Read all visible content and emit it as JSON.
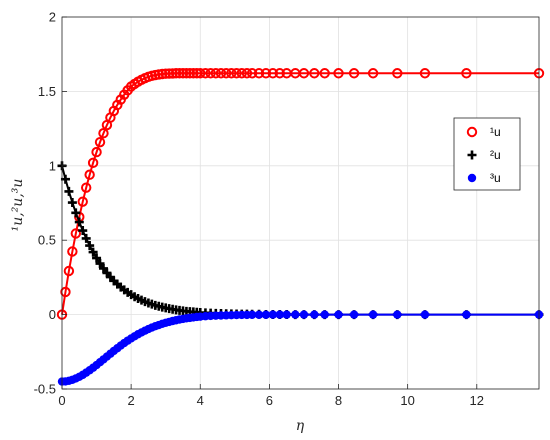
{
  "chart_data": {
    "type": "line",
    "title": "",
    "xlabel": "η",
    "ylabel": "¹u,²u,³u",
    "xlim": [
      0,
      13.8
    ],
    "ylim": [
      -0.5,
      2
    ],
    "grid": true,
    "legend_position": "right",
    "x_ticks": [
      "0",
      "2",
      "4",
      "6",
      "8",
      "10",
      "12"
    ],
    "y_ticks": [
      "-0.5",
      "0",
      "0.5",
      "1",
      "1.5",
      "2"
    ],
    "colors": {
      "s1": "#ff0000",
      "s2": "#000000",
      "s3": "#0000ff"
    },
    "x": [
      0,
      0.1,
      0.2,
      0.3,
      0.4,
      0.5,
      0.6,
      0.7,
      0.8,
      0.9,
      1.0,
      1.1,
      1.2,
      1.3,
      1.4,
      1.5,
      1.6,
      1.7,
      1.8,
      1.9,
      2.0,
      2.1,
      2.2,
      2.3,
      2.4,
      2.5,
      2.6,
      2.7,
      2.8,
      2.9,
      3.0,
      3.1,
      3.2,
      3.3,
      3.4,
      3.5,
      3.6,
      3.7,
      3.8,
      3.9,
      4.0,
      4.15,
      4.3,
      4.45,
      4.6,
      4.75,
      4.9,
      5.05,
      5.2,
      5.35,
      5.5,
      5.7,
      5.9,
      6.1,
      6.3,
      6.5,
      6.75,
      7.0,
      7.3,
      7.6,
      8.0,
      8.45,
      9.0,
      9.7,
      10.5,
      11.7,
      13.8
    ],
    "series": [
      {
        "name": "¹u",
        "marker": "open-circle",
        "values": [
          0,
          0.152,
          0.293,
          0.424,
          0.545,
          0.656,
          0.759,
          0.853,
          0.94,
          1.02,
          1.092,
          1.159,
          1.219,
          1.274,
          1.324,
          1.369,
          1.409,
          1.445,
          1.478,
          1.507,
          1.533,
          1.55,
          1.565,
          1.578,
          1.589,
          1.598,
          1.605,
          1.61,
          1.614,
          1.617,
          1.619,
          1.62,
          1.621,
          1.622,
          1.622,
          1.622,
          1.622,
          1.622,
          1.622,
          1.622,
          1.622,
          1.622,
          1.622,
          1.622,
          1.622,
          1.622,
          1.622,
          1.622,
          1.622,
          1.622,
          1.622,
          1.622,
          1.622,
          1.622,
          1.622,
          1.622,
          1.622,
          1.622,
          1.622,
          1.622,
          1.622,
          1.622,
          1.622,
          1.622,
          1.622,
          1.622,
          1.622
        ]
      },
      {
        "name": "²u",
        "marker": "plus",
        "values": [
          1.0,
          0.91,
          0.828,
          0.753,
          0.684,
          0.622,
          0.565,
          0.512,
          0.464,
          0.42,
          0.38,
          0.343,
          0.31,
          0.28,
          0.252,
          0.227,
          0.205,
          0.185,
          0.166,
          0.149,
          0.134,
          0.12,
          0.108,
          0.097,
          0.087,
          0.078,
          0.07,
          0.062,
          0.056,
          0.05,
          0.045,
          0.04,
          0.036,
          0.032,
          0.028,
          0.025,
          0.022,
          0.02,
          0.018,
          0.016,
          0.014,
          0.012,
          0.01,
          0.008,
          0.007,
          0.006,
          0.005,
          0.004,
          0.003,
          0.003,
          0.002,
          0.002,
          0.001,
          0.001,
          0.001,
          0.001,
          0,
          0,
          0,
          0,
          0,
          0,
          0,
          0,
          0,
          0,
          0
        ]
      },
      {
        "name": "³u",
        "marker": "filled-circle",
        "values": [
          -0.45,
          -0.449,
          -0.445,
          -0.438,
          -0.429,
          -0.418,
          -0.405,
          -0.39,
          -0.374,
          -0.357,
          -0.339,
          -0.32,
          -0.301,
          -0.282,
          -0.263,
          -0.244,
          -0.226,
          -0.208,
          -0.191,
          -0.175,
          -0.16,
          -0.146,
          -0.132,
          -0.12,
          -0.108,
          -0.097,
          -0.087,
          -0.078,
          -0.07,
          -0.062,
          -0.055,
          -0.049,
          -0.043,
          -0.038,
          -0.033,
          -0.029,
          -0.025,
          -0.022,
          -0.019,
          -0.016,
          -0.014,
          -0.011,
          -0.009,
          -0.007,
          -0.006,
          -0.005,
          -0.004,
          -0.003,
          -0.002,
          -0.002,
          -0.001,
          -0.001,
          -0.001,
          0,
          0,
          0,
          0,
          0,
          0,
          0,
          0,
          0,
          0,
          0,
          0,
          0,
          0
        ]
      }
    ]
  }
}
